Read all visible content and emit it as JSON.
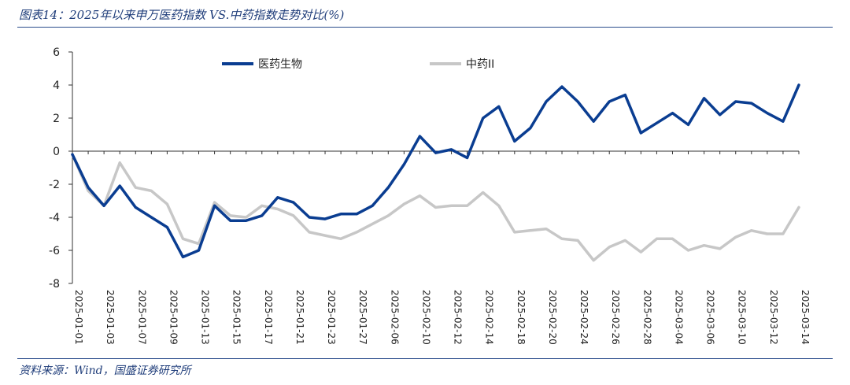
{
  "header": {
    "title": "图表14：2025年以来申万医药指数 VS.中药指数走势对比(%)"
  },
  "footer": {
    "source": "资料来源：Wind，国盛证券研究所"
  },
  "chart_data": {
    "type": "line",
    "title": "图表14：2025年以来申万医药指数 VS.中药指数走势对比(%)",
    "xlabel": "",
    "ylabel": "",
    "ylim": [
      -8,
      6
    ],
    "yticks": [
      6,
      4,
      2,
      0,
      -2,
      -4,
      -6,
      -8
    ],
    "grid": false,
    "legend": "top",
    "x": [
      "2025-01-01",
      "2025-01-02",
      "2025-01-03",
      "2025-01-06",
      "2025-01-07",
      "2025-01-08",
      "2025-01-09",
      "2025-01-10",
      "2025-01-13",
      "2025-01-14",
      "2025-01-15",
      "2025-01-16",
      "2025-01-17",
      "2025-01-20",
      "2025-01-21",
      "2025-01-22",
      "2025-01-23",
      "2025-01-24",
      "2025-01-27",
      "2025-02-05",
      "2025-02-06",
      "2025-02-07",
      "2025-02-10",
      "2025-02-11",
      "2025-02-12",
      "2025-02-13",
      "2025-02-14",
      "2025-02-17",
      "2025-02-18",
      "2025-02-19",
      "2025-02-20",
      "2025-02-21",
      "2025-02-24",
      "2025-02-25",
      "2025-02-26",
      "2025-02-27",
      "2025-02-28",
      "2025-03-03",
      "2025-03-04",
      "2025-03-05",
      "2025-03-06",
      "2025-03-07",
      "2025-03-10",
      "2025-03-11",
      "2025-03-12",
      "2025-03-13",
      "2025-03-14"
    ],
    "series": [
      {
        "name": "医药生物",
        "color": "#0a3d91",
        "values": [
          -0.2,
          -2.2,
          -3.3,
          -2.1,
          -3.4,
          -4.0,
          -4.6,
          -6.4,
          -6.0,
          -3.3,
          -4.2,
          -4.2,
          -3.9,
          -2.8,
          -3.1,
          -4.0,
          -4.1,
          -3.8,
          -3.8,
          -3.3,
          -2.2,
          -0.8,
          0.9,
          -0.1,
          0.1,
          -0.4,
          2.0,
          2.7,
          0.6,
          1.4,
          3.0,
          3.9,
          3.0,
          1.8,
          3.0,
          3.4,
          1.1,
          1.7,
          2.3,
          1.6,
          3.2,
          2.2,
          3.0,
          2.9,
          2.3,
          1.8,
          4.0
        ]
      },
      {
        "name": "中药II",
        "color": "#c7c7c7",
        "values": [
          -0.2,
          -2.4,
          -3.3,
          -0.7,
          -2.2,
          -2.4,
          -3.2,
          -5.3,
          -5.6,
          -3.1,
          -3.9,
          -4.0,
          -3.3,
          -3.5,
          -3.9,
          -4.9,
          -5.1,
          -5.3,
          -4.9,
          -4.4,
          -3.9,
          -3.2,
          -2.7,
          -3.4,
          -3.3,
          -3.3,
          -2.5,
          -3.3,
          -4.9,
          -4.8,
          -4.7,
          -5.3,
          -5.4,
          -6.6,
          -5.8,
          -5.4,
          -6.1,
          -5.3,
          -5.3,
          -6.0,
          -5.7,
          -5.9,
          -5.2,
          -4.8,
          -5.0,
          -5.0,
          -3.4
        ]
      }
    ]
  }
}
